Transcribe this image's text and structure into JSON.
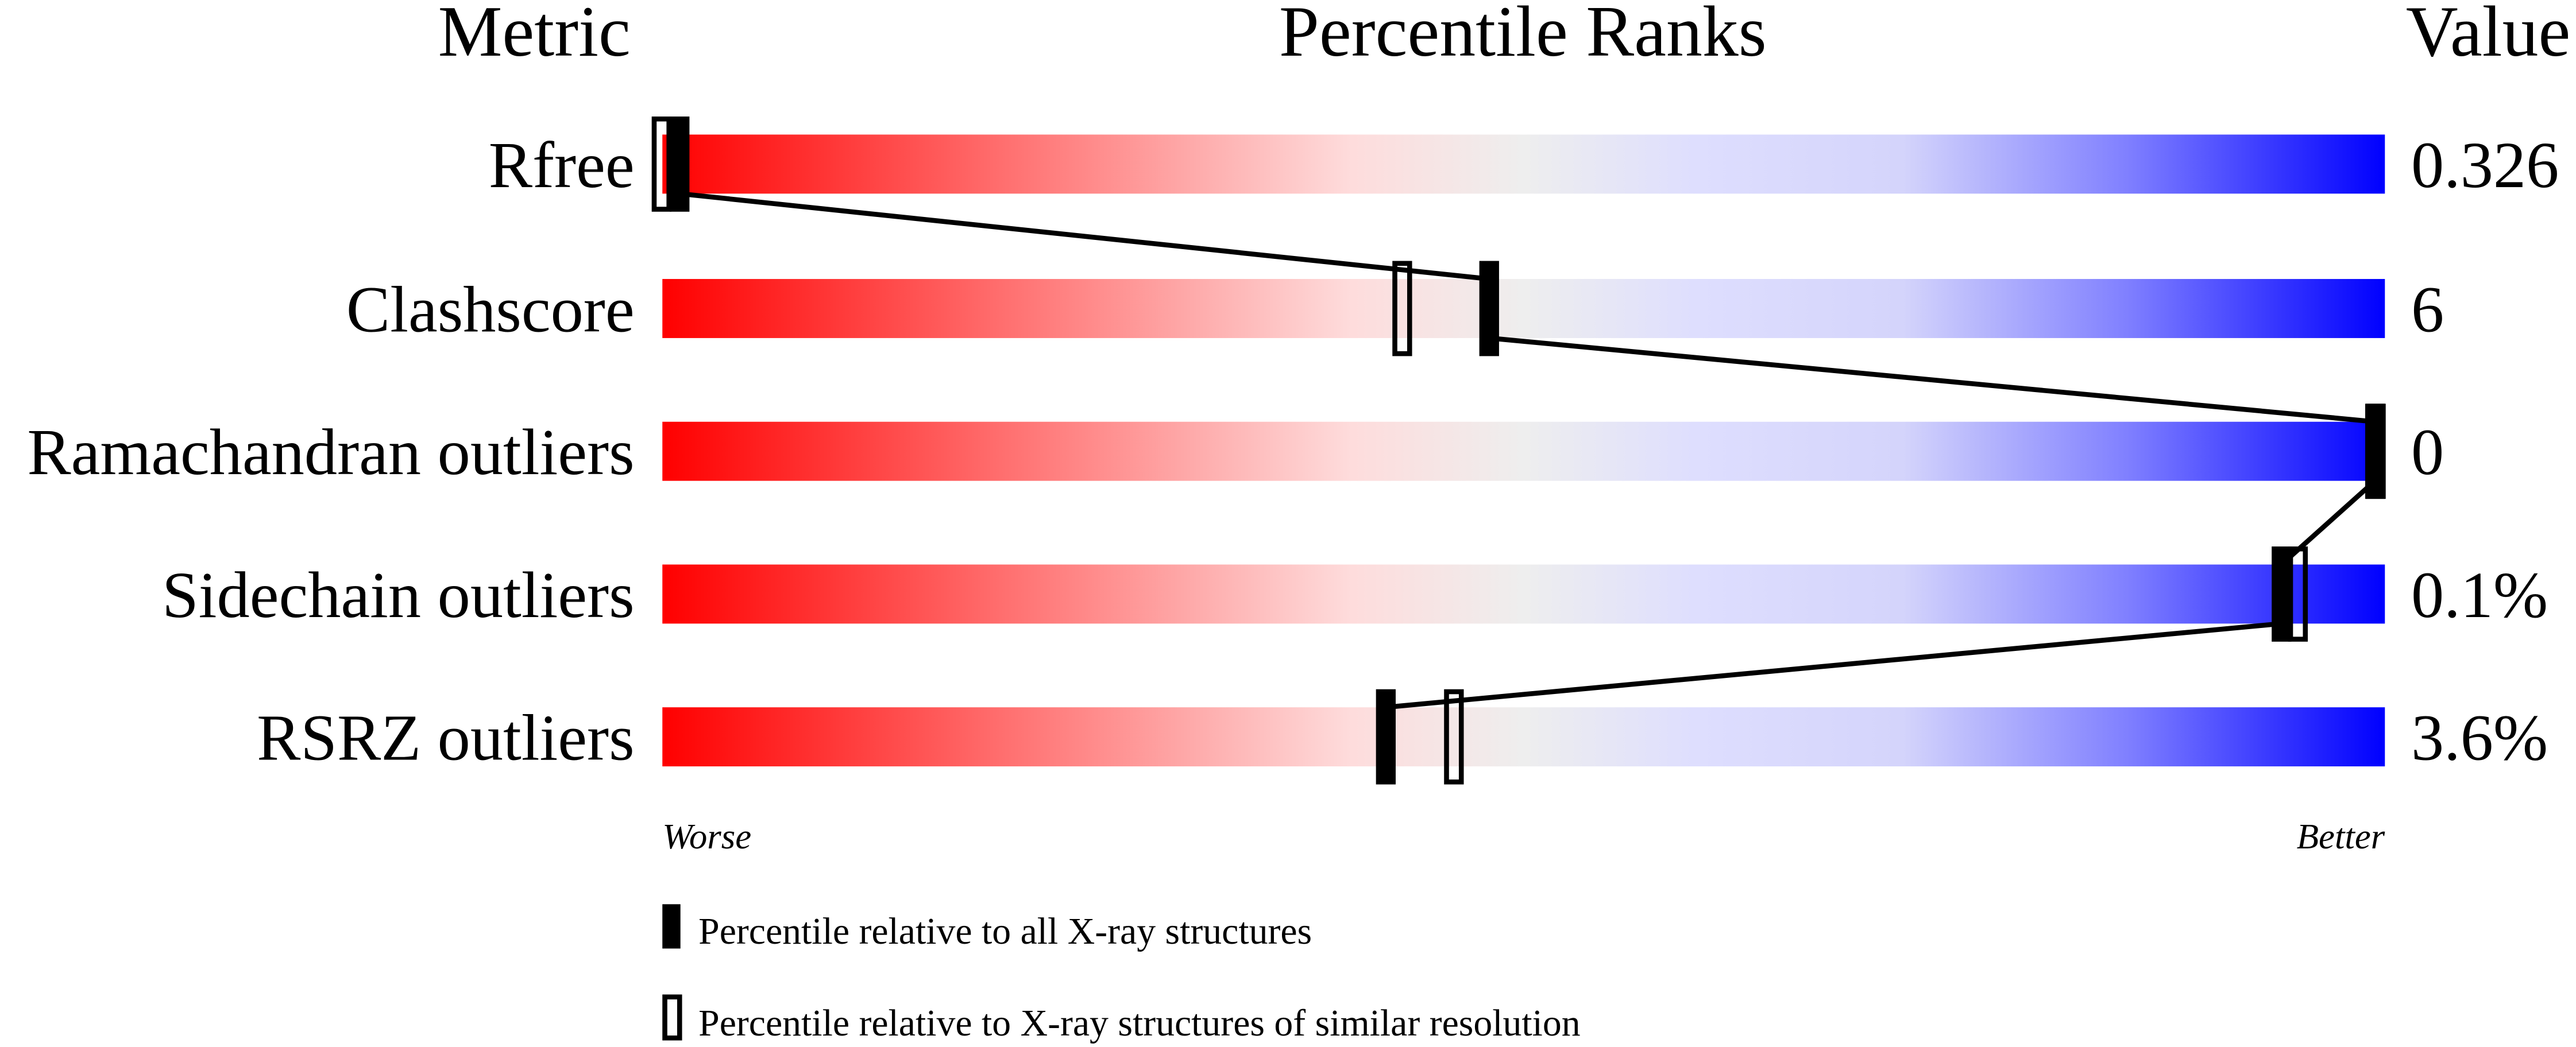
{
  "chart_data": {
    "type": "percentile-slider",
    "headers": {
      "metric": "Metric",
      "ranks": "Percentile Ranks",
      "value": "Value"
    },
    "xlim": [
      0,
      100
    ],
    "metrics": [
      {
        "label": "Rfree",
        "value": "0.326",
        "percentile_all": 1,
        "percentile_similar": 0
      },
      {
        "label": "Clashscore",
        "value": "6",
        "percentile_all": 48,
        "percentile_similar": 43
      },
      {
        "label": "Ramachandran outliers",
        "value": "0",
        "percentile_all": 100,
        "percentile_similar": 100
      },
      {
        "label": "Sidechain outliers",
        "value": "0.1%",
        "percentile_all": 94,
        "percentile_similar": 95
      },
      {
        "label": "RSRZ outliers",
        "value": "3.6%",
        "percentile_all": 42,
        "percentile_similar": 46
      }
    ],
    "axis": {
      "left": "Worse",
      "right": "Better"
    },
    "legend": [
      {
        "marker": "filled",
        "label": "Percentile relative to all X-ray structures"
      },
      {
        "marker": "open",
        "label": "Percentile relative to X-ray structures of similar resolution"
      }
    ],
    "colors": {
      "worse": "#ff0000",
      "middle": "#eeeeee",
      "better": "#0000ff",
      "marker": "#000000"
    }
  }
}
